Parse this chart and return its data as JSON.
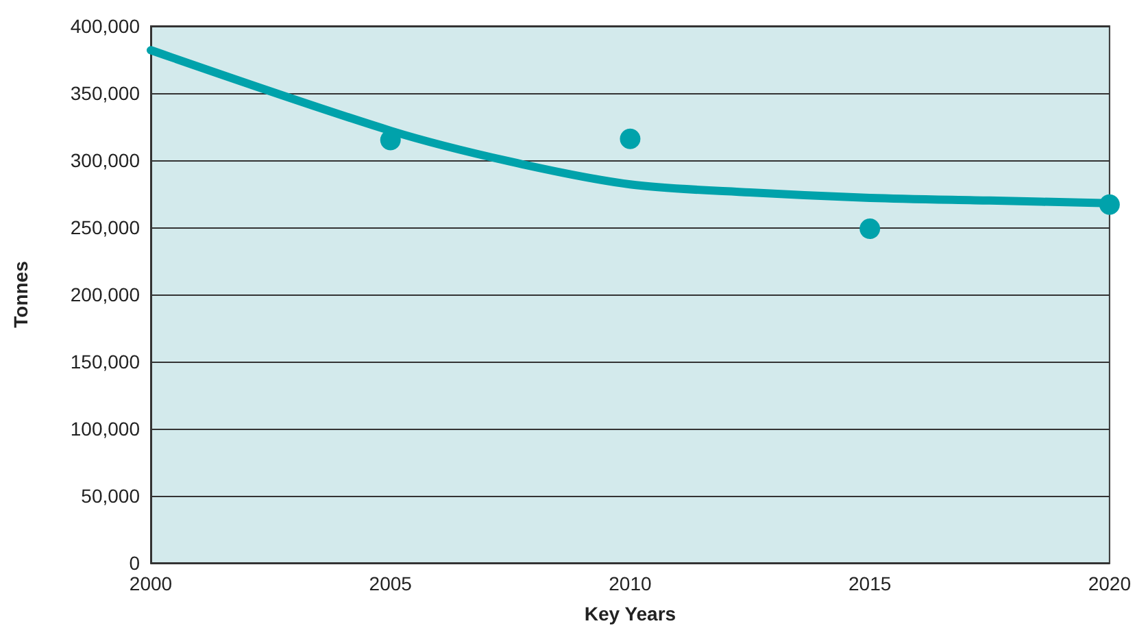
{
  "chart_data": {
    "type": "scatter",
    "xlabel": "Key Years",
    "ylabel": "Tonnes",
    "xlim": [
      2000,
      2020
    ],
    "xticks": [
      2000,
      2005,
      2010,
      2015,
      2020
    ],
    "ylim": [
      0,
      400000
    ],
    "yticks": [
      0,
      {
        "value": 50000,
        "label": "50,000"
      },
      {
        "value": 100000,
        "label": "100,000"
      },
      {
        "value": 150000,
        "label": "150,000"
      },
      {
        "value": 200000,
        "label": "200,000"
      },
      {
        "value": 250000,
        "label": "250,000"
      },
      {
        "value": 300000,
        "label": "300,000"
      },
      {
        "value": 350000,
        "label": "350,000"
      },
      {
        "value": 400000,
        "label": "400,000"
      }
    ],
    "grid": "y",
    "marker": "circle",
    "series": [
      {
        "type": "line",
        "color": "#00a2ab",
        "marker": "none",
        "x": [
          2000,
          2005,
          2007.5,
          2010,
          2012.5,
          2015,
          2017.5,
          2020
        ],
        "values": [
          382000,
          322000,
          299000,
          282000,
          276000,
          272000,
          270000,
          268000
        ]
      },
      {
        "color": "#00a2ab",
        "x": [
          2005,
          2010,
          2015,
          2020
        ],
        "values": [
          315000,
          316000,
          249000,
          267000
        ]
      }
    ]
  }
}
